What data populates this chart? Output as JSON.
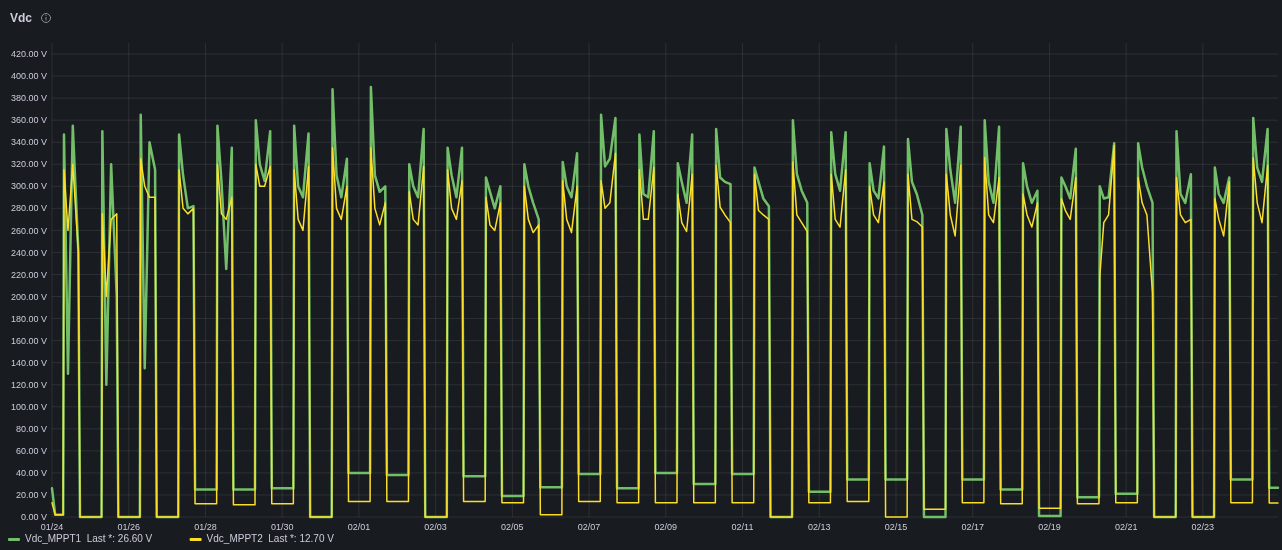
{
  "chart_data": {
    "type": "line",
    "title": "Vdc",
    "legend": "bottom left",
    "grid": true,
    "line_style": "solid",
    "marker": "none",
    "xlim": [
      "--01-24T00:00",
      "--02-24T23:00"
    ],
    "xticks": [
      {
        "value": "--01-24",
        "label": "01/24"
      },
      {
        "value": "--01-26",
        "label": "01/26"
      },
      {
        "value": "--01-28",
        "label": "01/28"
      },
      {
        "value": "--01-30",
        "label": "01/30"
      },
      {
        "value": "--02-01",
        "label": "02/01"
      },
      {
        "value": "--02-03",
        "label": "02/03"
      },
      {
        "value": "--02-05",
        "label": "02/05"
      },
      {
        "value": "--02-07",
        "label": "02/07"
      },
      {
        "value": "--02-09",
        "label": "02/09"
      },
      {
        "value": "--02-11",
        "label": "02/11"
      },
      {
        "value": "--02-13",
        "label": "02/13"
      },
      {
        "value": "--02-15",
        "label": "02/15"
      },
      {
        "value": "--02-17",
        "label": "02/17"
      },
      {
        "value": "--02-19",
        "label": "02/19"
      },
      {
        "value": "--02-21",
        "label": "02/21"
      },
      {
        "value": "--02-23",
        "label": "02/23"
      }
    ],
    "ylim": [
      0,
      430
    ],
    "yticks": [
      {
        "value": 0,
        "label": "0.00 V"
      },
      {
        "value": 20,
        "label": "20.00 V"
      },
      {
        "value": 40,
        "label": "40.00 V"
      },
      {
        "value": 60,
        "label": "60.00 V"
      },
      {
        "value": 80,
        "label": "80.00 V"
      },
      {
        "value": 100,
        "label": "100.00 V"
      },
      {
        "value": 120,
        "label": "120.00 V"
      },
      {
        "value": 140,
        "label": "140.00 V"
      },
      {
        "value": 160,
        "label": "160.00 V"
      },
      {
        "value": 180,
        "label": "180.00 V"
      },
      {
        "value": 200,
        "label": "200.00 V"
      },
      {
        "value": 220,
        "label": "220.00 V"
      },
      {
        "value": 240,
        "label": "240.00 V"
      },
      {
        "value": 260,
        "label": "260.00 V"
      },
      {
        "value": 280,
        "label": "280.00 V"
      },
      {
        "value": 300,
        "label": "300.00 V"
      },
      {
        "value": 320,
        "label": "320.00 V"
      },
      {
        "value": 340,
        "label": "340.00 V"
      },
      {
        "value": 360,
        "label": "360.00 V"
      },
      {
        "value": 380,
        "label": "380.00 V"
      },
      {
        "value": 400,
        "label": "400.00 V"
      },
      {
        "value": 420,
        "label": "420.00 V"
      }
    ],
    "x": [
      "--01-24T00:00",
      "--01-24T02:00",
      "--01-24T07:00",
      "--01-24T07:30",
      "--01-24T10:00",
      "--01-24T13:00",
      "--01-24T16:30",
      "--01-24T17:30",
      "--01-25T07:00",
      "--01-25T07:30",
      "--01-25T10:00",
      "--01-25T13:00",
      "--01-25T16:30",
      "--01-25T17:30",
      "--01-26T07:00",
      "--01-26T07:30",
      "--01-26T10:00",
      "--01-26T13:00",
      "--01-26T16:30",
      "--01-26T17:30",
      "--01-27T07:00",
      "--01-27T07:30",
      "--01-27T10:00",
      "--01-27T13:00",
      "--01-27T16:30",
      "--01-27T17:30",
      "--01-28T07:00",
      "--01-28T07:30",
      "--01-28T10:00",
      "--01-28T13:00",
      "--01-28T16:30",
      "--01-28T17:30",
      "--01-29T07:00",
      "--01-29T07:30",
      "--01-29T10:00",
      "--01-29T13:00",
      "--01-29T16:30",
      "--01-29T17:30",
      "--01-30T07:00",
      "--01-30T07:30",
      "--01-30T10:00",
      "--01-30T13:00",
      "--01-30T16:30",
      "--01-30T17:30",
      "--01-31T07:00",
      "--01-31T07:30",
      "--01-31T10:00",
      "--01-31T13:00",
      "--01-31T16:30",
      "--01-31T17:30",
      "--02-01T07:00",
      "--02-01T07:30",
      "--02-01T10:00",
      "--02-01T13:00",
      "--02-01T16:30",
      "--02-01T17:30",
      "--02-02T07:00",
      "--02-02T07:30",
      "--02-02T10:00",
      "--02-02T13:00",
      "--02-02T16:30",
      "--02-02T17:30",
      "--02-03T07:00",
      "--02-03T07:30",
      "--02-03T10:00",
      "--02-03T13:00",
      "--02-03T16:30",
      "--02-03T17:30",
      "--02-04T07:00",
      "--02-04T07:30",
      "--02-04T10:00",
      "--02-04T13:00",
      "--02-04T16:30",
      "--02-04T17:30",
      "--02-05T07:00",
      "--02-05T07:30",
      "--02-05T10:00",
      "--02-05T13:00",
      "--02-05T16:30",
      "--02-05T17:30",
      "--02-06T07:00",
      "--02-06T07:30",
      "--02-06T10:00",
      "--02-06T13:00",
      "--02-06T16:30",
      "--02-06T17:30",
      "--02-07T07:00",
      "--02-07T07:30",
      "--02-07T10:00",
      "--02-07T13:00",
      "--02-07T16:30",
      "--02-07T17:30",
      "--02-08T07:00",
      "--02-08T07:30",
      "--02-08T10:00",
      "--02-08T13:00",
      "--02-08T16:30",
      "--02-08T17:30",
      "--02-09T07:00",
      "--02-09T07:30",
      "--02-09T10:00",
      "--02-09T13:00",
      "--02-09T16:30",
      "--02-09T17:30",
      "--02-10T07:00",
      "--02-10T07:30",
      "--02-10T10:00",
      "--02-10T13:00",
      "--02-10T16:30",
      "--02-10T17:30",
      "--02-11T07:00",
      "--02-11T07:30",
      "--02-11T10:00",
      "--02-11T13:00",
      "--02-11T16:30",
      "--02-11T17:30",
      "--02-12T07:00",
      "--02-12T07:30",
      "--02-12T10:00",
      "--02-12T13:00",
      "--02-12T16:30",
      "--02-12T17:30",
      "--02-13T07:00",
      "--02-13T07:30",
      "--02-13T10:00",
      "--02-13T13:00",
      "--02-13T16:30",
      "--02-13T17:30",
      "--02-14T07:00",
      "--02-14T07:30",
      "--02-14T10:00",
      "--02-14T13:00",
      "--02-14T16:30",
      "--02-14T17:30",
      "--02-15T07:00",
      "--02-15T07:30",
      "--02-15T10:00",
      "--02-15T13:00",
      "--02-15T16:30",
      "--02-15T17:30",
      "--02-16T07:00",
      "--02-16T07:30",
      "--02-16T10:00",
      "--02-16T13:00",
      "--02-16T16:30",
      "--02-16T17:30",
      "--02-17T07:00",
      "--02-17T07:30",
      "--02-17T10:00",
      "--02-17T13:00",
      "--02-17T16:30",
      "--02-17T17:30",
      "--02-18T07:00",
      "--02-18T07:30",
      "--02-18T10:00",
      "--02-18T13:00",
      "--02-18T16:30",
      "--02-18T17:30",
      "--02-19T07:00",
      "--02-19T07:30",
      "--02-19T10:00",
      "--02-19T13:00",
      "--02-19T16:30",
      "--02-19T17:30",
      "--02-20T07:00",
      "--02-20T07:30",
      "--02-20T10:00",
      "--02-20T13:00",
      "--02-20T16:30",
      "--02-20T17:30",
      "--02-21T07:00",
      "--02-21T07:30",
      "--02-21T10:00",
      "--02-21T13:00",
      "--02-21T16:30",
      "--02-21T17:30",
      "--02-22T07:00",
      "--02-22T07:30",
      "--02-22T10:00",
      "--02-22T13:00",
      "--02-22T16:30",
      "--02-22T17:30",
      "--02-23T07:00",
      "--02-23T07:30",
      "--02-23T10:00",
      "--02-23T13:00",
      "--02-23T16:30",
      "--02-23T17:30",
      "--02-24T07:00",
      "--02-24T07:30",
      "--02-24T10:00",
      "--02-24T13:00",
      "--02-24T16:30",
      "--02-24T17:30",
      "--02-24T23:00"
    ],
    "series": [
      {
        "name": "Vdc_MPPT1  Last *: 26.60 V",
        "color": "#73bf69",
        "values": [
          26,
          2,
          2,
          347,
          130,
          355,
          240,
          0,
          0,
          350,
          120,
          320,
          200,
          0,
          0,
          365,
          135,
          340,
          315,
          0,
          0,
          347,
          310,
          280,
          282,
          25,
          25,
          355,
          305,
          225,
          335,
          25,
          25,
          360,
          320,
          305,
          350,
          26,
          26,
          355,
          300,
          290,
          348,
          0,
          0,
          388,
          310,
          290,
          325,
          40,
          40,
          390,
          310,
          295,
          300,
          38,
          38,
          320,
          300,
          290,
          352,
          0,
          0,
          335,
          310,
          290,
          335,
          37,
          37,
          308,
          295,
          280,
          300,
          19,
          19,
          320,
          300,
          285,
          270,
          27,
          27,
          322,
          300,
          290,
          330,
          39,
          39,
          365,
          318,
          325,
          362,
          26,
          26,
          347,
          293,
          290,
          350,
          40,
          40,
          321,
          304,
          285,
          347,
          30,
          30,
          352,
          308,
          304,
          302,
          39,
          39,
          317,
          304,
          289,
          282,
          0,
          0,
          360,
          311,
          296,
          285,
          23,
          23,
          349,
          311,
          296,
          349,
          34,
          34,
          321,
          296,
          289,
          336,
          34,
          34,
          343,
          304,
          293,
          274,
          0,
          0,
          352,
          315,
          285,
          354,
          34,
          34,
          360,
          304,
          285,
          354,
          25,
          25,
          321,
          300,
          285,
          296,
          1,
          1,
          308,
          300,
          289,
          334,
          18,
          18,
          300,
          289,
          290,
          339,
          21,
          21,
          339,
          317,
          300,
          285,
          0,
          0,
          350,
          293,
          285,
          311,
          0,
          0,
          317,
          293,
          285,
          308,
          34,
          34,
          362,
          317,
          304,
          352,
          26.6,
          26.6
        ]
      },
      {
        "name": "Vdc_MPPT2  Last *: 12.70 V",
        "color": "#fade2a",
        "values": [
          13,
          2,
          2,
          315,
          260,
          320,
          240,
          0,
          0,
          275,
          200,
          270,
          275,
          0,
          0,
          325,
          300,
          290,
          290,
          0,
          0,
          315,
          280,
          275,
          280,
          12,
          12,
          320,
          275,
          270,
          290,
          11,
          11,
          320,
          300,
          300,
          318,
          12,
          12,
          315,
          270,
          260,
          318,
          0,
          0,
          335,
          280,
          270,
          300,
          14,
          14,
          335,
          280,
          265,
          285,
          14,
          14,
          295,
          270,
          265,
          318,
          0,
          0,
          315,
          280,
          270,
          305,
          14,
          14,
          290,
          265,
          260,
          285,
          13,
          13,
          300,
          270,
          258,
          265,
          2,
          2,
          305,
          270,
          258,
          300,
          14,
          14,
          305,
          280,
          285,
          330,
          13,
          13,
          315,
          270,
          270,
          317,
          13,
          13,
          293,
          267,
          259,
          311,
          13,
          13,
          319,
          281,
          274,
          267,
          13,
          13,
          311,
          278,
          274,
          270,
          0,
          0,
          322,
          274,
          267,
          259,
          13,
          13,
          311,
          270,
          263,
          315,
          14,
          14,
          300,
          274,
          267,
          304,
          0,
          0,
          311,
          270,
          268,
          263,
          7,
          7,
          311,
          274,
          255,
          319,
          13,
          13,
          326,
          274,
          267,
          308,
          12,
          12,
          293,
          274,
          263,
          285,
          8,
          8,
          289,
          278,
          270,
          308,
          12,
          12,
          218,
          267,
          274,
          337,
          13,
          13,
          308,
          285,
          274,
          203,
          0,
          0,
          308,
          274,
          267,
          270,
          0,
          0,
          289,
          270,
          255,
          304,
          13,
          13,
          326,
          285,
          267,
          319,
          12.7,
          12.7
        ]
      }
    ]
  }
}
